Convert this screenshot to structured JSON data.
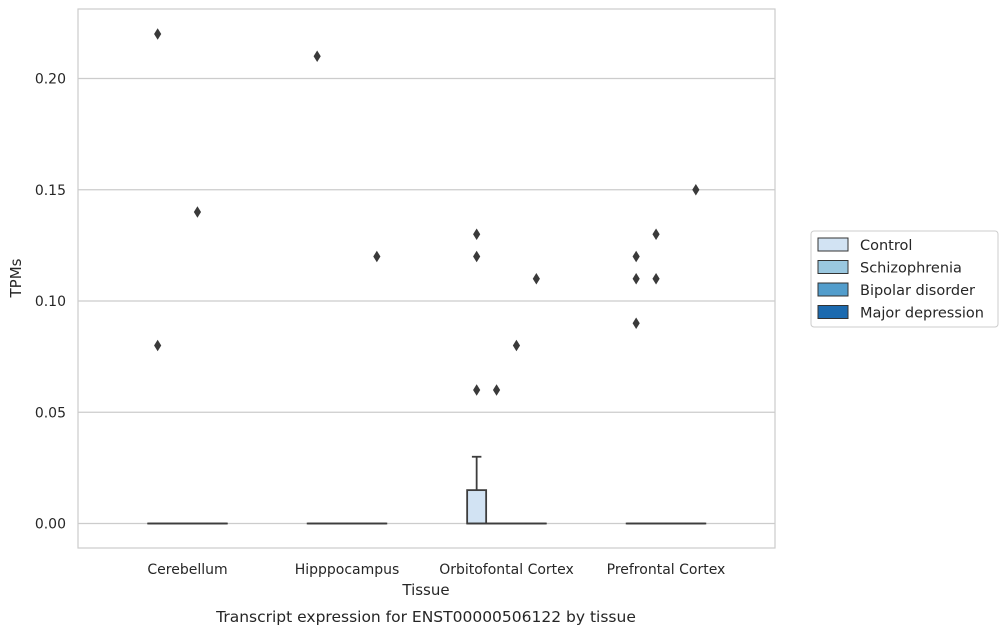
{
  "chart_data": {
    "type": "boxplot",
    "caption": "Transcript expression for ENST00000506122 by tissue",
    "xlabel": "Tissue",
    "ylabel": "TPMs",
    "ylim": [
      -0.011,
      0.232
    ],
    "yticks": [
      0.0,
      0.05,
      0.1,
      0.15,
      0.2
    ],
    "ytick_labels": [
      "0.00",
      "0.05",
      "0.10",
      "0.15",
      "0.20"
    ],
    "grid": "horizontal",
    "legend_position": "right",
    "categories": [
      "Cerebellum",
      "Hipppocampus",
      "Orbitofontal Cortex",
      "Prefrontal Cortex"
    ],
    "series": [
      {
        "name": "Control",
        "color": "#d2e3f3"
      },
      {
        "name": "Schizophrenia",
        "color": "#9ac8e0"
      },
      {
        "name": "Bipolar disorder",
        "color": "#529dcc"
      },
      {
        "name": "Major depression",
        "color": "#1c6aaf"
      }
    ],
    "boxes": [
      {
        "category": 0,
        "series": 0,
        "q1": 0,
        "median": 0,
        "q3": 0,
        "whisker_low": 0,
        "whisker_high": 0,
        "outliers": [
          0.08,
          0.22
        ]
      },
      {
        "category": 0,
        "series": 1,
        "q1": 0,
        "median": 0,
        "q3": 0,
        "whisker_low": 0,
        "whisker_high": 0,
        "outliers": []
      },
      {
        "category": 0,
        "series": 2,
        "q1": 0,
        "median": 0,
        "q3": 0,
        "whisker_low": 0,
        "whisker_high": 0,
        "outliers": [
          0.14
        ]
      },
      {
        "category": 0,
        "series": 3,
        "q1": 0,
        "median": 0,
        "q3": 0,
        "whisker_low": 0,
        "whisker_high": 0,
        "outliers": []
      },
      {
        "category": 1,
        "series": 0,
        "q1": 0,
        "median": 0,
        "q3": 0,
        "whisker_low": 0,
        "whisker_high": 0,
        "outliers": [
          0.21
        ]
      },
      {
        "category": 1,
        "series": 1,
        "q1": 0,
        "median": 0,
        "q3": 0,
        "whisker_low": 0,
        "whisker_high": 0,
        "outliers": []
      },
      {
        "category": 1,
        "series": 2,
        "q1": 0,
        "median": 0,
        "q3": 0,
        "whisker_low": 0,
        "whisker_high": 0,
        "outliers": []
      },
      {
        "category": 1,
        "series": 3,
        "q1": 0,
        "median": 0,
        "q3": 0,
        "whisker_low": 0,
        "whisker_high": 0,
        "outliers": [
          0.12
        ]
      },
      {
        "category": 2,
        "series": 0,
        "q1": 0,
        "median": 0,
        "q3": 0.015,
        "whisker_low": 0,
        "whisker_high": 0.03,
        "outliers": [
          0.06,
          0.12,
          0.13
        ]
      },
      {
        "category": 2,
        "series": 1,
        "q1": 0,
        "median": 0,
        "q3": 0,
        "whisker_low": 0,
        "whisker_high": 0,
        "outliers": [
          0.06
        ]
      },
      {
        "category": 2,
        "series": 2,
        "q1": 0,
        "median": 0,
        "q3": 0,
        "whisker_low": 0,
        "whisker_high": 0,
        "outliers": [
          0.08
        ]
      },
      {
        "category": 2,
        "series": 3,
        "q1": 0,
        "median": 0,
        "q3": 0,
        "whisker_low": 0,
        "whisker_high": 0,
        "outliers": [
          0.11
        ]
      },
      {
        "category": 3,
        "series": 0,
        "q1": 0,
        "median": 0,
        "q3": 0,
        "whisker_low": 0,
        "whisker_high": 0,
        "outliers": [
          0.09,
          0.11,
          0.12
        ]
      },
      {
        "category": 3,
        "series": 1,
        "q1": 0,
        "median": 0,
        "q3": 0,
        "whisker_low": 0,
        "whisker_high": 0,
        "outliers": [
          0.11,
          0.13
        ]
      },
      {
        "category": 3,
        "series": 2,
        "q1": 0,
        "median": 0,
        "q3": 0,
        "whisker_low": 0,
        "whisker_high": 0,
        "outliers": []
      },
      {
        "category": 3,
        "series": 3,
        "q1": 0,
        "median": 0,
        "q3": 0,
        "whisker_low": 0,
        "whisker_high": 0,
        "outliers": [
          0.15
        ]
      }
    ]
  }
}
